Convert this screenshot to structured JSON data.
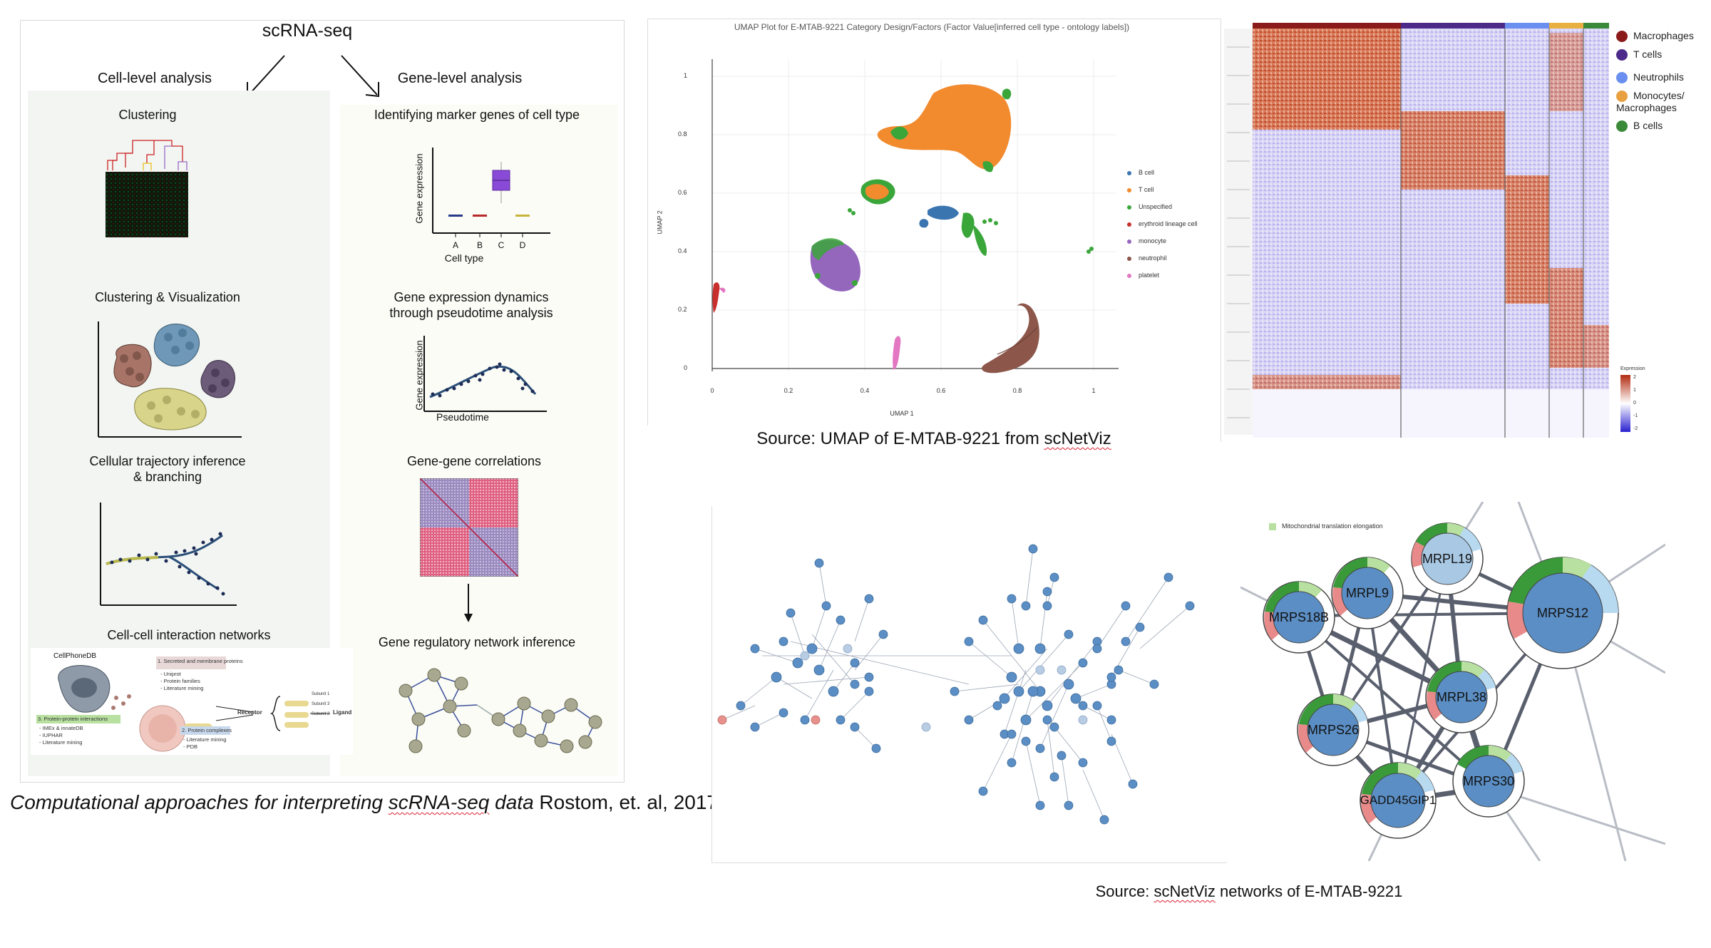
{
  "left_figure": {
    "title": "scRNA-seq",
    "cell_level": {
      "heading": "Cell-level analysis",
      "clustering": "Clustering",
      "clustering_vis": "Clustering & Visualization",
      "trajectory_line1": "Cellular trajectory inference",
      "trajectory_line2": "& branching",
      "interaction": "Cell-cell interaction networks",
      "cellphonedb": {
        "name": "CellPhoneDB",
        "box1_title": "1. Secreted and membrane proteins",
        "box1_items": [
          "- Uniprot",
          "- Protein families",
          "- Literature mining"
        ],
        "box2_title": "2. Protein complexes",
        "box2_items": [
          "- Literature mining",
          "- PDB"
        ],
        "box3_title": "3. Protein-protein interactions",
        "box3_items": [
          "- IMEx & innateDB",
          "- IUPHAR",
          "- Literature mining"
        ],
        "receptor": "Receptor",
        "ligand": "Ligand",
        "subunit1": "Subunit 1",
        "subunit2": "Subunit 2",
        "subunit3": "Subunit 3"
      }
    },
    "gene_level": {
      "heading": "Gene-level analysis",
      "marker": "Identifying marker genes of cell type",
      "marker_ylabel": "Gene expression",
      "marker_xlabel": "Cell type",
      "marker_categories": [
        "A",
        "B",
        "C",
        "D"
      ],
      "dynamics_line1": "Gene expression dynamics",
      "dynamics_line2": "through pseudotime analysis",
      "dynamics_ylabel": "Gene expression",
      "dynamics_xlabel": "Pseudotime",
      "correlations": "Gene-gene correlations",
      "grn": "Gene regulatory network inference"
    },
    "caption_italic_a": "Computational approaches for interpreting ",
    "caption_italic_b": "scRNA-seq",
    "caption_italic_c": " data",
    "caption_rest": " Rostom, et. al, 2017"
  },
  "umap": {
    "title": "UMAP Plot for E-MTAB-9221 Category Design/Factors (Factor Value[inferred cell type - ontology labels])",
    "xlabel": "UMAP 1",
    "ylabel": "UMAP 2",
    "x_ticks": [
      "0",
      "0.2",
      "0.4",
      "0.6",
      "0.8",
      "1"
    ],
    "y_ticks": [
      "0",
      "0.2",
      "0.4",
      "0.6",
      "0.8",
      "1"
    ],
    "legend": [
      {
        "label": "B cell",
        "color": "#3a75b0"
      },
      {
        "label": "T cell",
        "color": "#f28a2e"
      },
      {
        "label": "Unspecified",
        "color": "#3aa63a"
      },
      {
        "label": "erythroid lineage cell",
        "color": "#c8302e"
      },
      {
        "label": "monocyte",
        "color": "#9467bd"
      },
      {
        "label": "neutrophil",
        "color": "#8c564b"
      },
      {
        "label": "platelet",
        "color": "#e377c2"
      }
    ],
    "source_prefix": "Source: UMAP of E-MTAB-9221 from ",
    "source_link": "scNetViz"
  },
  "heatmap": {
    "legend": [
      {
        "label": "Macrophages",
        "color": "#8b1a1a"
      },
      {
        "label": "T cells",
        "color": "#4b2a8a"
      },
      {
        "label": "Neutrophils",
        "color": "#6a8ff0"
      },
      {
        "label": "Monocytes/\nMacrophages",
        "color": "#e8a040"
      },
      {
        "label": "B cells",
        "color": "#3a8a3a"
      }
    ],
    "scale_title": "Expression",
    "scale_ticks": [
      "2",
      "1",
      "0",
      "-1",
      "-2"
    ],
    "group_colors": [
      "#8b1a1a",
      "#4b2a8a",
      "#6a8ff0",
      "#e8b040",
      "#3a8a3a"
    ]
  },
  "network_zoom": {
    "legend_label": "Mitochondrial translation elongation",
    "nodes": [
      "MRPL19",
      "MRPL9",
      "MRPS12",
      "MRPS18B",
      "MRPL38",
      "MRPS26",
      "MRPS30",
      "GADD45GIP1"
    ]
  },
  "network_source_prefix": "Source: ",
  "network_source_link": "scNetViz",
  "network_source_rest": " networks of E-MTAB-9221"
}
